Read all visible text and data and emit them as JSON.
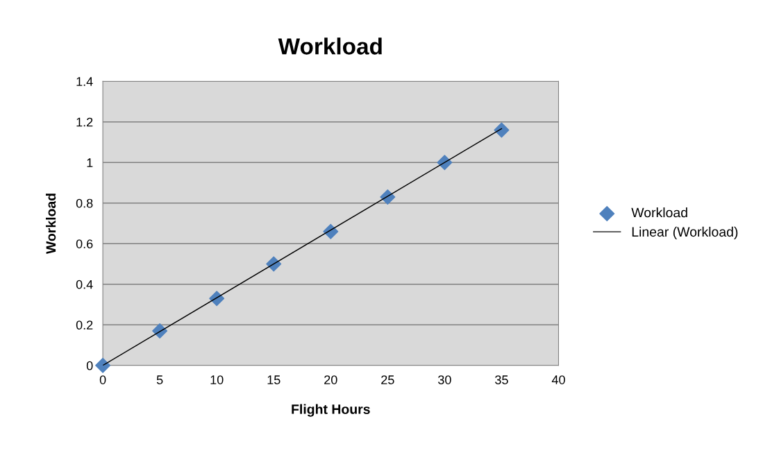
{
  "chart_data": {
    "type": "scatter",
    "title": "Workload",
    "xlabel": "Flight Hours",
    "ylabel": "Workload",
    "xlim": [
      0,
      40
    ],
    "ylim": [
      0,
      1.4
    ],
    "xticks": [
      0,
      5,
      10,
      15,
      20,
      25,
      30,
      35,
      40
    ],
    "yticks": [
      0,
      0.2,
      0.4,
      0.6,
      0.8,
      1,
      1.2,
      1.4
    ],
    "grid": "y",
    "legend": "right",
    "series": [
      {
        "name": "Workload",
        "color": "#4f81bd",
        "marker": "diamond",
        "x": [
          0,
          5,
          10,
          15,
          20,
          25,
          30,
          35
        ],
        "values": [
          0,
          0.17,
          0.33,
          0.5,
          0.66,
          0.83,
          1.0,
          1.16
        ]
      },
      {
        "type": "line",
        "name": "Linear (Workload)",
        "color": "#000000",
        "marker": "none",
        "line_style": "solid",
        "x": [
          0,
          35
        ],
        "values": [
          0,
          1.167
        ]
      }
    ]
  }
}
